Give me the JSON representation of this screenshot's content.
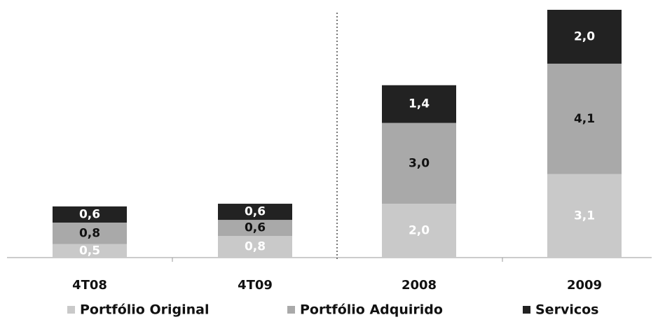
{
  "chart_data": {
    "type": "stacked_bar",
    "categories": [
      "4T08",
      "4T09",
      "2008",
      "2009"
    ],
    "series": [
      {
        "name": "Portfólio Original",
        "color": "#c9c9c9",
        "label_color": "#ffffff",
        "values": [
          0.5,
          0.8,
          2.0,
          3.1
        ],
        "value_labels": [
          "0,5",
          "0,8",
          "2,0",
          "3,1"
        ]
      },
      {
        "name": "Portfólio Adquirido",
        "color": "#a9a9a9",
        "label_color": "#111111",
        "values": [
          0.8,
          0.6,
          3.0,
          4.1
        ],
        "value_labels": [
          "0,8",
          "0,6",
          "3,0",
          "4,1"
        ]
      },
      {
        "name": "Servicos",
        "color": "#222222",
        "label_color": "#ffffff",
        "values": [
          0.6,
          0.6,
          1.4,
          2.0
        ],
        "value_labels": [
          "0,6",
          "0,6",
          "1,4",
          "2,0"
        ]
      }
    ]
  }
}
